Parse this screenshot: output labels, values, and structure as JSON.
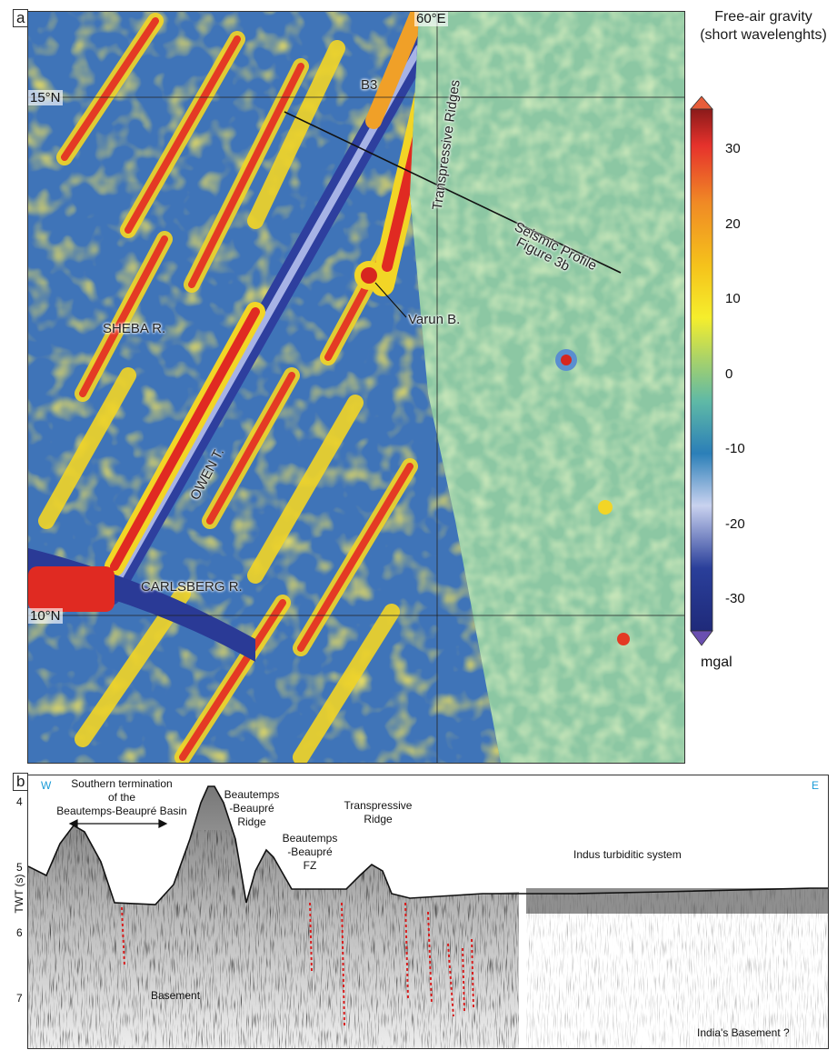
{
  "panel_a": {
    "letter": "a",
    "grid_labels": {
      "lon_60": "60°E",
      "lat_15": "15°N",
      "lat_10": "10°N"
    },
    "features": {
      "b3": "B3",
      "transpressive_ridges": "Transpressive Ridges",
      "seismic_profile": "Seismic Profile",
      "figure_ref": "Figure 3b",
      "varun": "Varun B.",
      "sheba": "SHEBA R.",
      "owen": "OWEN T.",
      "carlsberg": "CARLSBERG R."
    }
  },
  "colorbar": {
    "title_line1": "Free-air gravity",
    "title_line2": "(short wavelenghts)",
    "ticks": [
      "30",
      "20",
      "10",
      "0",
      "-10",
      "-20",
      "-30"
    ],
    "unit": "mgal",
    "colors": [
      "#8b1a1a",
      "#e6322c",
      "#f08a25",
      "#f5c21b",
      "#f5ee2c",
      "#a8d26a",
      "#5fb9a6",
      "#2b7fb8",
      "#c9d2ef",
      "#2a3f9a",
      "#5a3aa0"
    ]
  },
  "panel_b": {
    "letter": "b",
    "west": "W",
    "east": "E",
    "axis_label": "TWT (s)",
    "axis_ticks": [
      "4",
      "5",
      "6",
      "7"
    ],
    "labels": {
      "southern_line1": "Southern termination",
      "southern_line2": "of the",
      "southern_line3": "Beautemps-Beaupré Basin",
      "ridge_line1": "Beautemps",
      "ridge_line2": "-Beaupré",
      "ridge_line3": "Ridge",
      "fz_line1": "Beautemps",
      "fz_line2": "-Beaupré",
      "fz_line3": "FZ",
      "transp_line1": "Transpressive",
      "transp_line2": "Ridge",
      "indus": "Indus turbiditic system",
      "basement": "Basement",
      "india_basement": "India's Basement ?"
    }
  }
}
